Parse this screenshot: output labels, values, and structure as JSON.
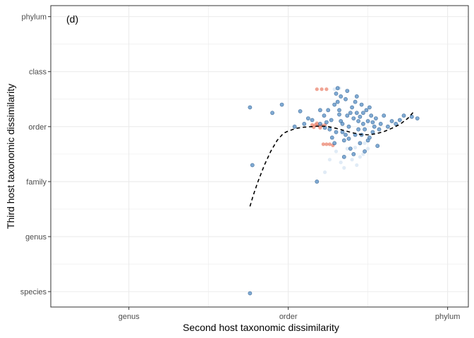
{
  "chart_data": {
    "type": "scatter",
    "panel_label": "(d)",
    "xlabel": "Second host taxonomic dissimilarity",
    "ylabel": "Third host taxonomic dissimilarity",
    "x_ticks": [
      {
        "label": "genus",
        "value": 2
      },
      {
        "label": "order",
        "value": 4
      },
      {
        "label": "phylum",
        "value": 6
      }
    ],
    "y_ticks": [
      {
        "label": "species",
        "value": 1
      },
      {
        "label": "genus",
        "value": 2
      },
      {
        "label": "family",
        "value": 3
      },
      {
        "label": "order",
        "value": 4
      },
      {
        "label": "class",
        "value": 5
      },
      {
        "label": "phylum",
        "value": 6
      }
    ],
    "xlim": [
      1.02,
      6.26
    ],
    "ylim": [
      0.72,
      6.2
    ],
    "grid": true,
    "legend": "none",
    "colors": {
      "point_blue": "#4a86c0",
      "point_outline": "#2f5f8f",
      "point_red": "#e8735a",
      "point_pale": "#c6dbef",
      "trend_line": "#000000",
      "grid": "#ebebeb",
      "panel_border": "#333333"
    },
    "series": [
      {
        "points": [
          [
            3.52,
            0.97
          ],
          [
            3.52,
            4.35
          ],
          [
            3.8,
            4.25
          ],
          [
            3.92,
            4.4
          ],
          [
            3.55,
            3.3
          ],
          [
            4.15,
            4.28
          ],
          [
            4.25,
            4.15
          ],
          [
            4.3,
            4.12
          ],
          [
            4.2,
            4.05
          ],
          [
            4.08,
            4.0
          ],
          [
            4.4,
            4.3
          ],
          [
            4.45,
            4.2
          ],
          [
            4.48,
            4.08
          ],
          [
            4.52,
            3.95
          ],
          [
            4.55,
            3.8
          ],
          [
            4.58,
            4.4
          ],
          [
            4.6,
            4.6
          ],
          [
            4.62,
            4.7
          ],
          [
            4.64,
            4.3
          ],
          [
            4.66,
            4.1
          ],
          [
            4.68,
            3.9
          ],
          [
            4.7,
            3.75
          ],
          [
            4.72,
            4.5
          ],
          [
            4.74,
            4.2
          ],
          [
            4.76,
            4.0
          ],
          [
            4.78,
            3.6
          ],
          [
            4.8,
            4.35
          ],
          [
            4.82,
            4.15
          ],
          [
            4.84,
            3.85
          ],
          [
            4.86,
            4.25
          ],
          [
            4.88,
            3.95
          ],
          [
            4.9,
            3.7
          ],
          [
            4.92,
            4.4
          ],
          [
            4.94,
            4.05
          ],
          [
            4.96,
            3.55
          ],
          [
            4.98,
            4.3
          ],
          [
            5.0,
            4.1
          ],
          [
            5.02,
            3.8
          ],
          [
            5.04,
            4.2
          ],
          [
            5.06,
            3.9
          ],
          [
            5.08,
            4.0
          ],
          [
            5.1,
            4.15
          ],
          [
            5.12,
            3.65
          ],
          [
            5.14,
            3.95
          ],
          [
            5.16,
            4.05
          ],
          [
            5.2,
            4.2
          ],
          [
            5.25,
            4.0
          ],
          [
            5.3,
            4.1
          ],
          [
            5.35,
            4.05
          ],
          [
            5.4,
            4.12
          ],
          [
            5.45,
            4.2
          ],
          [
            5.55,
            4.18
          ],
          [
            5.62,
            4.15
          ],
          [
            4.36,
            3.0
          ],
          [
            4.7,
            3.45
          ],
          [
            4.82,
            3.5
          ],
          [
            4.6,
            3.9
          ],
          [
            4.5,
            4.3
          ],
          [
            4.4,
            4.05
          ],
          [
            4.66,
            4.55
          ],
          [
            4.74,
            4.65
          ],
          [
            4.86,
            4.55
          ],
          [
            4.92,
            3.85
          ],
          [
            5.02,
            4.35
          ],
          [
            4.58,
            3.7
          ],
          [
            4.68,
            4.05
          ],
          [
            4.78,
            4.25
          ],
          [
            4.88,
            4.1
          ],
          [
            4.96,
            3.95
          ],
          [
            4.62,
            4.45
          ],
          [
            4.72,
            3.85
          ],
          [
            4.84,
            4.45
          ],
          [
            4.94,
            4.25
          ],
          [
            5.06,
            4.08
          ],
          [
            4.54,
            4.12
          ],
          [
            4.46,
            3.98
          ],
          [
            4.76,
            3.78
          ],
          [
            4.9,
            4.18
          ],
          [
            5.0,
            3.75
          ],
          [
            4.64,
            4.22
          ]
        ]
      },
      {
        "points": [
          [
            4.3,
            4.03
          ],
          [
            4.34,
            4.03
          ],
          [
            4.38,
            4.02
          ],
          [
            4.42,
            4.02
          ],
          [
            4.36,
            4.06
          ],
          [
            4.32,
            3.99
          ],
          [
            4.4,
            3.98
          ],
          [
            4.46,
            4.03
          ],
          [
            4.48,
            3.68
          ],
          [
            4.44,
            3.68
          ],
          [
            4.52,
            3.68
          ],
          [
            4.36,
            4.68
          ],
          [
            4.42,
            4.68
          ],
          [
            4.48,
            4.68
          ],
          [
            4.56,
            3.66
          ]
        ]
      },
      {
        "points": [
          [
            4.46,
            3.17
          ],
          [
            4.58,
            4.68
          ],
          [
            4.64,
            4.7
          ],
          [
            4.74,
            3.6
          ],
          [
            4.8,
            3.4
          ],
          [
            4.86,
            3.3
          ],
          [
            4.7,
            3.25
          ],
          [
            4.9,
            3.45
          ],
          [
            4.96,
            3.7
          ],
          [
            5.0,
            3.6
          ],
          [
            4.52,
            3.4
          ],
          [
            4.6,
            3.55
          ],
          [
            4.66,
            3.35
          ],
          [
            4.84,
            3.62
          ],
          [
            4.94,
            3.5
          ]
        ]
      }
    ],
    "trend_line": [
      [
        3.52,
        2.55
      ],
      [
        3.56,
        2.75
      ],
      [
        3.62,
        3.0
      ],
      [
        3.7,
        3.3
      ],
      [
        3.78,
        3.55
      ],
      [
        3.86,
        3.75
      ],
      [
        3.94,
        3.88
      ],
      [
        4.0,
        3.92
      ],
      [
        4.1,
        3.97
      ],
      [
        4.2,
        3.99
      ],
      [
        4.3,
        4.0
      ],
      [
        4.4,
        4.01
      ],
      [
        4.5,
        4.0
      ],
      [
        4.6,
        3.97
      ],
      [
        4.7,
        3.93
      ],
      [
        4.8,
        3.89
      ],
      [
        4.9,
        3.86
      ],
      [
        5.0,
        3.85
      ],
      [
        5.1,
        3.87
      ],
      [
        5.2,
        3.91
      ],
      [
        5.3,
        3.97
      ],
      [
        5.4,
        4.04
      ],
      [
        5.5,
        4.15
      ],
      [
        5.58,
        4.28
      ]
    ]
  }
}
